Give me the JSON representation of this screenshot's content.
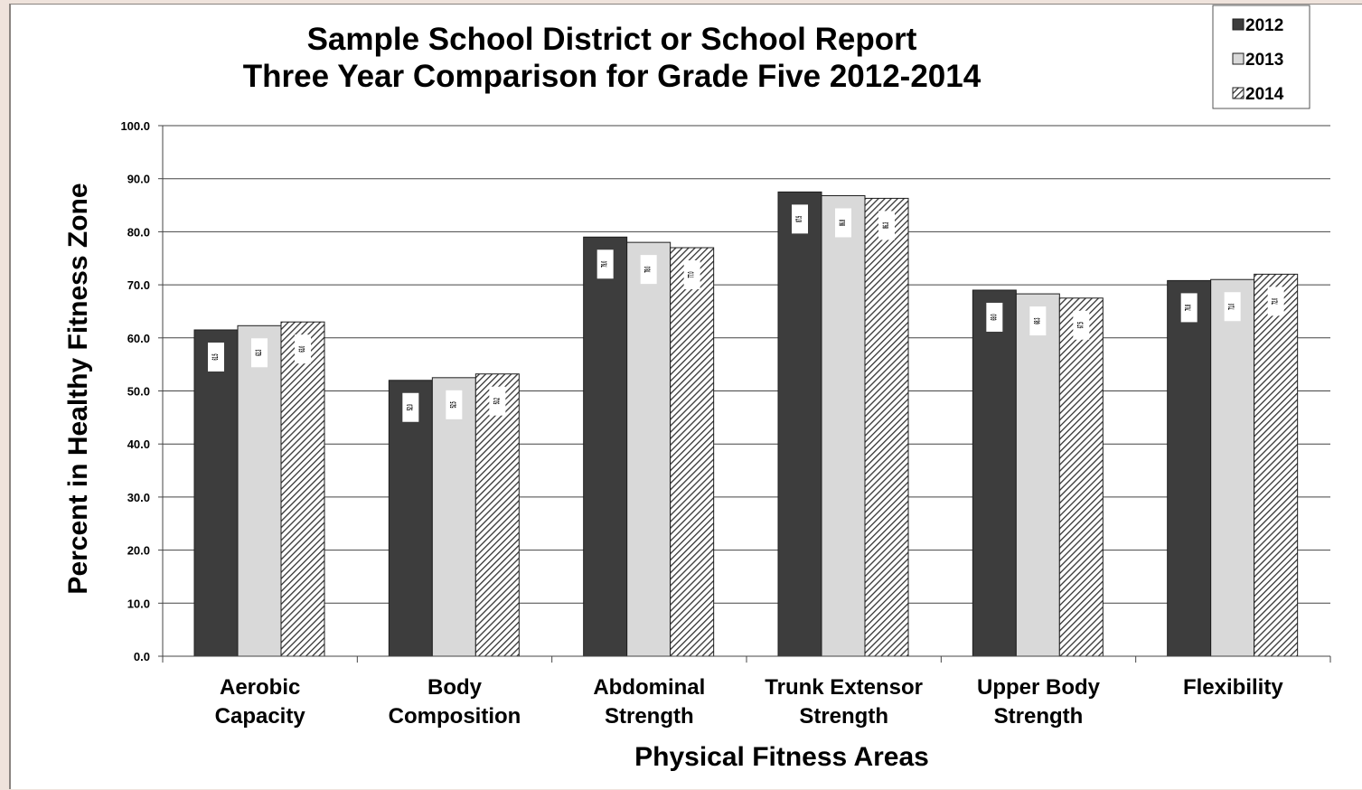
{
  "chart_data": {
    "type": "bar",
    "title": [
      "Sample School District or School Report",
      "Three Year Comparison for Grade Five 2012-2014"
    ],
    "xlabel": "Physical Fitness Areas",
    "ylabel": "Percent in Healthy Fitness Zone",
    "ylim": [
      0,
      100
    ],
    "yticks": [
      "0.0",
      "10.0",
      "20.0",
      "30.0",
      "40.0",
      "50.0",
      "60.0",
      "70.0",
      "80.0",
      "90.0",
      "100.0"
    ],
    "grid": true,
    "legend_position": "top-right",
    "categories": [
      [
        "Aerobic",
        "Capacity"
      ],
      [
        "Body",
        "Composition"
      ],
      [
        "Abdominal",
        "Strength"
      ],
      [
        "Trunk Extensor",
        "Strength"
      ],
      [
        "Upper Body",
        "Strength"
      ],
      [
        "Flexibility"
      ]
    ],
    "series": [
      {
        "name": "2012",
        "fill": "#3d3d3d",
        "pattern": "solid",
        "values": [
          61.5,
          52.0,
          79.0,
          87.5,
          69.0,
          70.8
        ]
      },
      {
        "name": "2013",
        "fill": "#d9d9d9",
        "pattern": "solid",
        "values": [
          62.3,
          52.5,
          78.0,
          86.8,
          68.3,
          71.0
        ]
      },
      {
        "name": "2014",
        "fill": "#ffffff",
        "pattern": "diagonal-hatch",
        "values": [
          63.0,
          53.2,
          77.0,
          86.3,
          67.5,
          72.0
        ]
      }
    ]
  }
}
